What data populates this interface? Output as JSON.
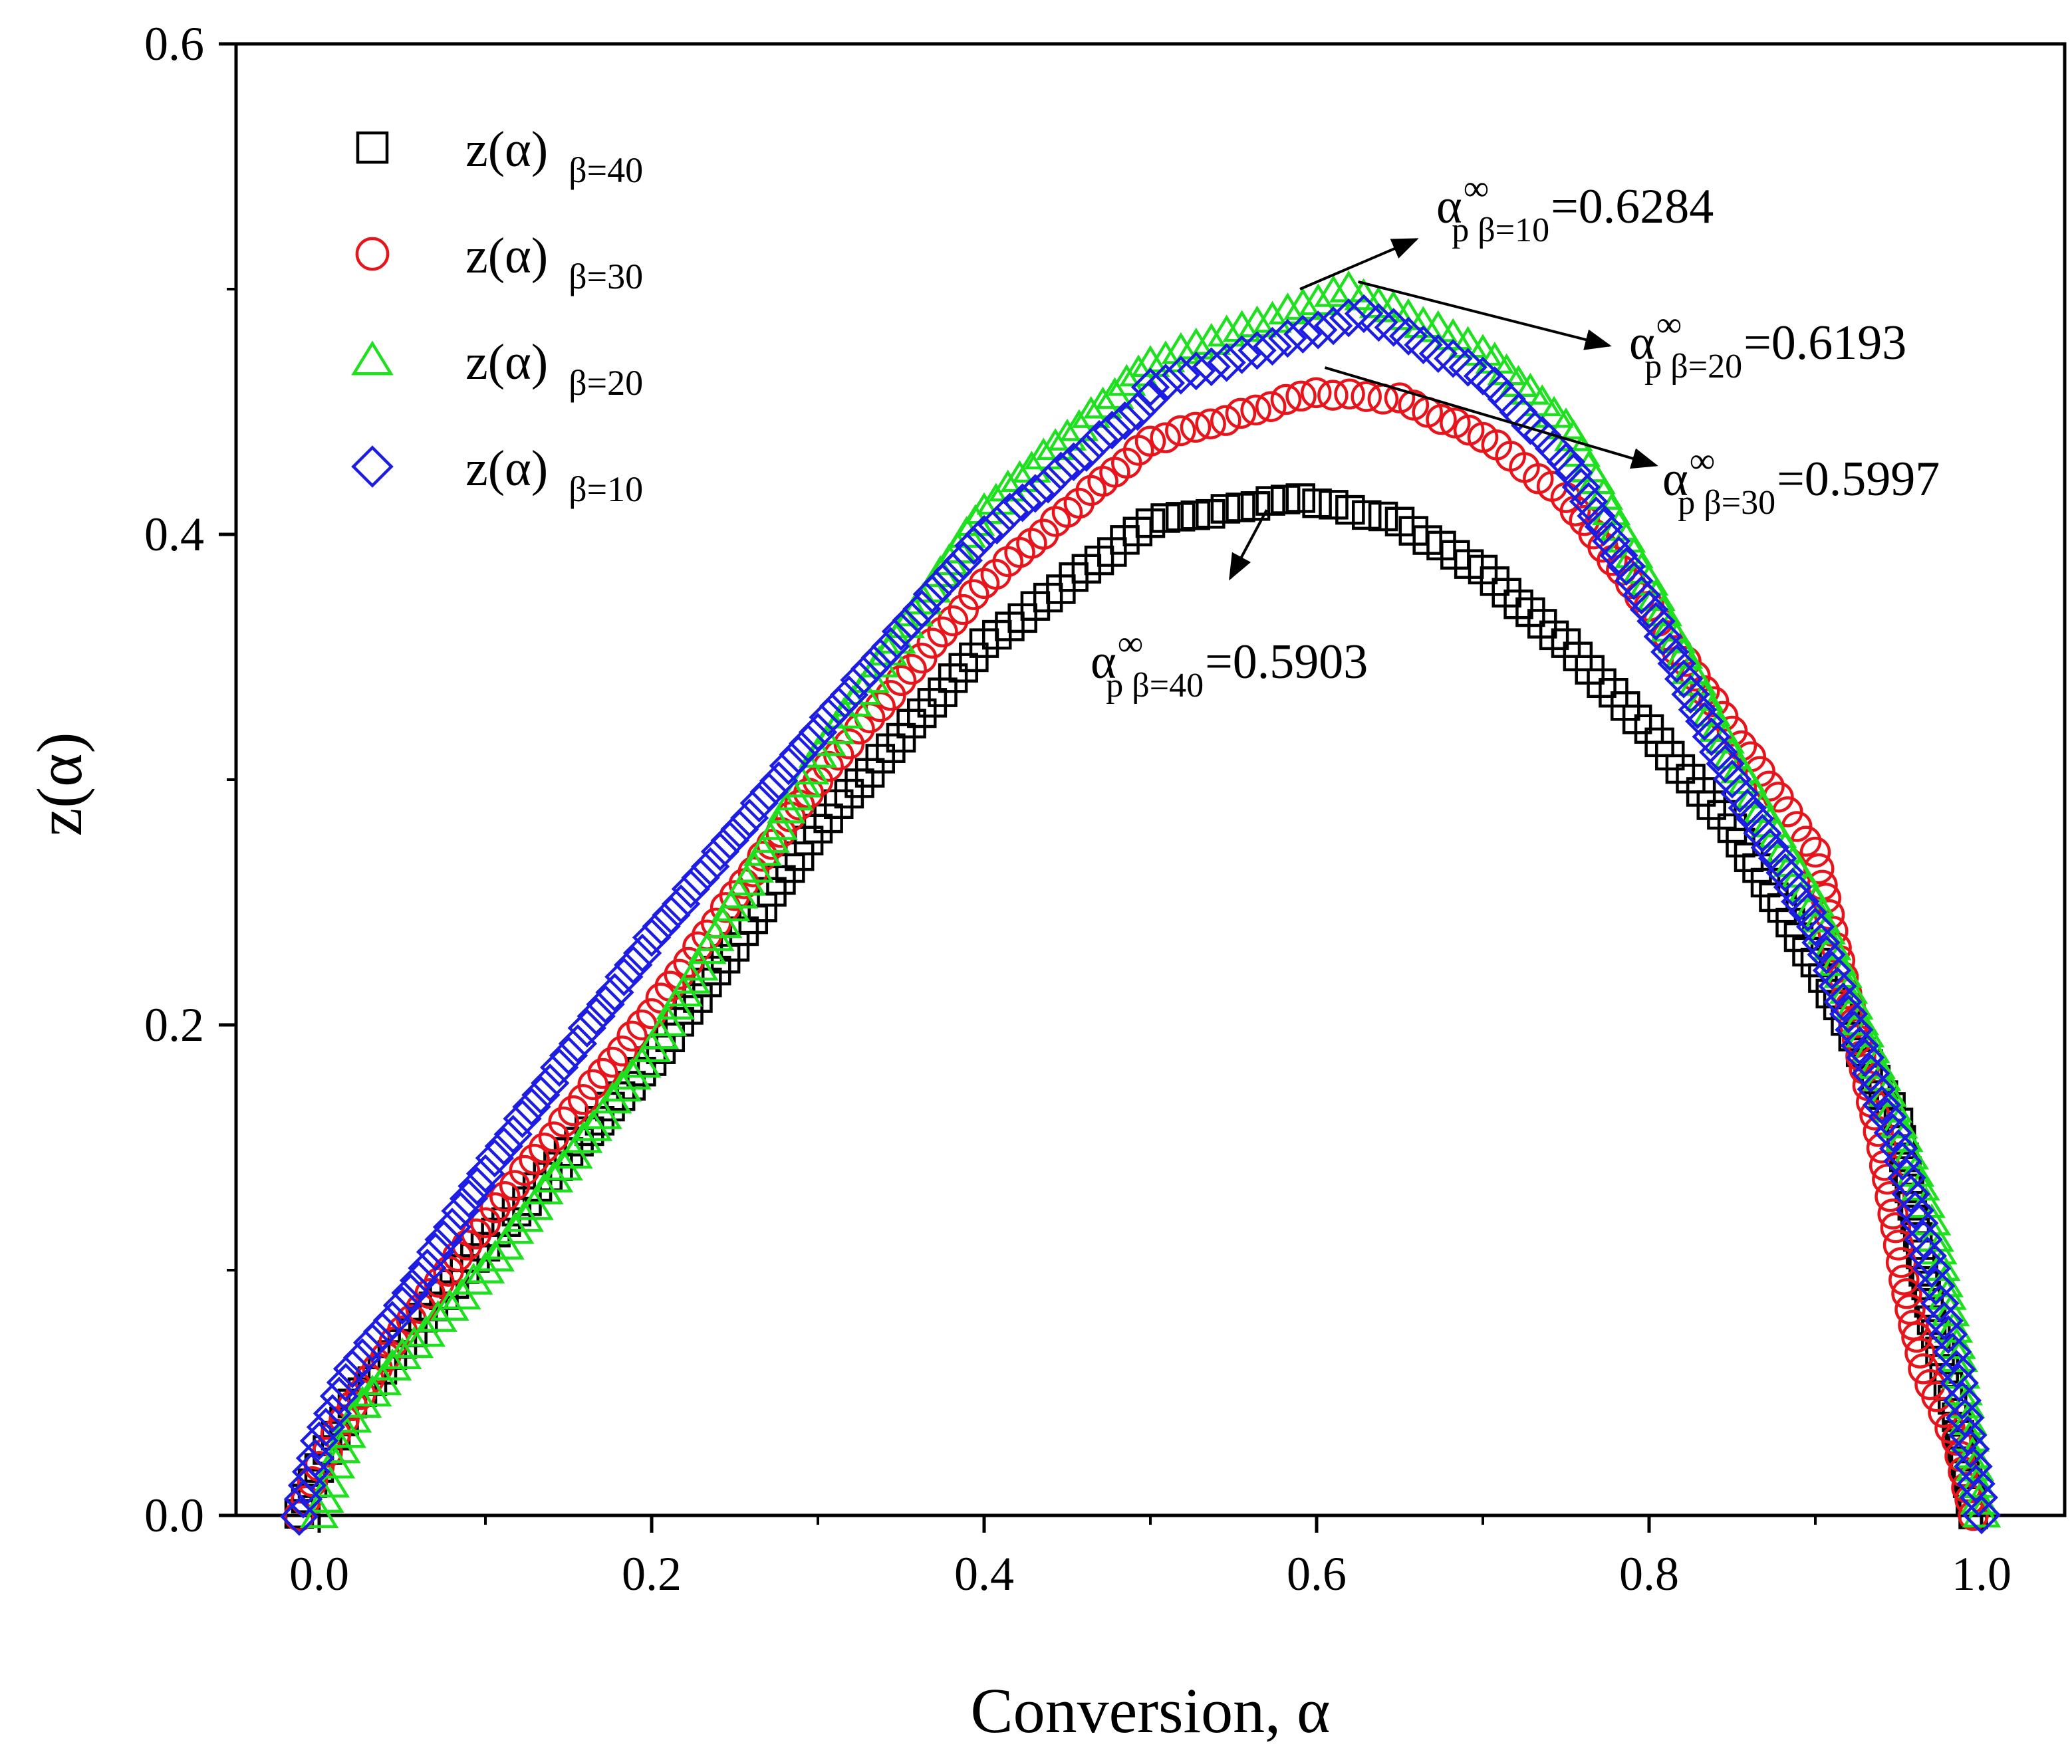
{
  "chart_data": {
    "type": "scatter",
    "title": "",
    "xlabel": "Conversion, α",
    "ylabel": "z(α)",
    "xlim": [
      -0.05,
      1.05
    ],
    "ylim": [
      0.0,
      0.6
    ],
    "x_ticks": [
      0.0,
      0.2,
      0.4,
      0.6,
      0.8,
      1.0
    ],
    "x_tick_labels": [
      "0.0",
      "0.2",
      "0.4",
      "0.6",
      "0.8",
      "1.0"
    ],
    "y_ticks": [
      0.0,
      0.2,
      0.4,
      0.6
    ],
    "y_tick_labels": [
      "0.0",
      "0.2",
      "0.4",
      "0.6"
    ],
    "legend_position": "top-left",
    "series": [
      {
        "name": "z(α) β=40",
        "label_main": "z(α)",
        "label_sub": "β=40",
        "marker": "square",
        "color": "#000000",
        "keypoints": [
          [
            -0.012,
            0.0
          ],
          [
            0.0,
            0.02
          ],
          [
            0.02,
            0.045
          ],
          [
            0.05,
            0.07
          ],
          [
            0.1,
            0.11
          ],
          [
            0.2,
            0.185
          ],
          [
            0.3,
            0.28
          ],
          [
            0.4,
            0.355
          ],
          [
            0.5,
            0.405
          ],
          [
            0.5903,
            0.415
          ],
          [
            0.65,
            0.405
          ],
          [
            0.7,
            0.385
          ],
          [
            0.75,
            0.355
          ],
          [
            0.8,
            0.32
          ],
          [
            0.85,
            0.28
          ],
          [
            0.9,
            0.225
          ],
          [
            0.95,
            0.16
          ],
          [
            0.97,
            0.08
          ],
          [
            0.985,
            0.04
          ],
          [
            0.995,
            0.0
          ]
        ]
      },
      {
        "name": "z(α) β=30",
        "label_main": "z(α)",
        "label_sub": "β=30",
        "marker": "circle",
        "color": "#e8141b",
        "keypoints": [
          [
            -0.012,
            0.0
          ],
          [
            0.0,
            0.02
          ],
          [
            0.02,
            0.045
          ],
          [
            0.05,
            0.075
          ],
          [
            0.1,
            0.12
          ],
          [
            0.2,
            0.205
          ],
          [
            0.3,
            0.3
          ],
          [
            0.4,
            0.38
          ],
          [
            0.5,
            0.438
          ],
          [
            0.5997,
            0.458
          ],
          [
            0.65,
            0.455
          ],
          [
            0.7,
            0.44
          ],
          [
            0.75,
            0.415
          ],
          [
            0.8,
            0.37
          ],
          [
            0.85,
            0.32
          ],
          [
            0.9,
            0.27
          ],
          [
            0.94,
            0.15
          ],
          [
            0.955,
            0.09
          ],
          [
            0.965,
            0.06
          ],
          [
            0.985,
            0.03
          ],
          [
            0.995,
            0.0
          ]
        ]
      },
      {
        "name": "z(α) β=20",
        "label_main": "z(α)",
        "label_sub": "β=20",
        "marker": "triangle",
        "color": "#1ee01e",
        "keypoints": [
          [
            0.0,
            0.0
          ],
          [
            0.02,
            0.04
          ],
          [
            0.05,
            0.065
          ],
          [
            0.1,
            0.1
          ],
          [
            0.2,
            0.19
          ],
          [
            0.3,
            0.31
          ],
          [
            0.4,
            0.41
          ],
          [
            0.5,
            0.47
          ],
          [
            0.6193,
            0.5
          ],
          [
            0.7,
            0.475
          ],
          [
            0.75,
            0.445
          ],
          [
            0.8,
            0.38
          ],
          [
            0.85,
            0.31
          ],
          [
            0.9,
            0.25
          ],
          [
            0.95,
            0.16
          ],
          [
            0.97,
            0.12
          ],
          [
            0.985,
            0.07
          ],
          [
            1.0,
            0.0
          ]
        ]
      },
      {
        "name": "z(α) β=10",
        "label_main": "z(α)",
        "label_sub": "β=10",
        "marker": "diamond",
        "color": "#1c1ce3",
        "keypoints": [
          [
            -0.012,
            0.0
          ],
          [
            0.0,
            0.03
          ],
          [
            0.02,
            0.06
          ],
          [
            0.05,
            0.085
          ],
          [
            0.1,
            0.14
          ],
          [
            0.2,
            0.235
          ],
          [
            0.3,
            0.32
          ],
          [
            0.4,
            0.4
          ],
          [
            0.5,
            0.455
          ],
          [
            0.5,
            0.46
          ],
          [
            0.6284,
            0.49
          ],
          [
            0.7,
            0.465
          ],
          [
            0.75,
            0.43
          ],
          [
            0.8,
            0.37
          ],
          [
            0.85,
            0.3
          ],
          [
            0.9,
            0.24
          ],
          [
            0.95,
            0.15
          ],
          [
            0.97,
            0.1
          ],
          [
            0.985,
            0.06
          ],
          [
            1.0,
            0.0
          ]
        ]
      }
    ],
    "annotations": [
      {
        "id": "b10",
        "symbol": "α",
        "sup": "∞",
        "sub": "p β=10",
        "value": "=0.6284",
        "point": [
          0.59,
          0.5
        ],
        "label_at": [
          0.64,
          0.525
        ]
      },
      {
        "id": "b20",
        "symbol": "α",
        "sup": "∞",
        "sub": "p β=20",
        "value": "=0.6193",
        "point": [
          0.625,
          0.503
        ],
        "label_at": [
          0.76,
          0.475
        ]
      },
      {
        "id": "b30",
        "symbol": "α",
        "sup": "∞",
        "sub": "p β=30",
        "value": "=0.5997",
        "point": [
          0.605,
          0.468
        ],
        "label_at": [
          0.8,
          0.43
        ]
      },
      {
        "id": "b40",
        "symbol": "α",
        "sup": "∞",
        "sub": "p β=40",
        "value": "=0.5903",
        "point": [
          0.57,
          0.41
        ],
        "label_at": [
          0.545,
          0.38
        ]
      }
    ]
  }
}
